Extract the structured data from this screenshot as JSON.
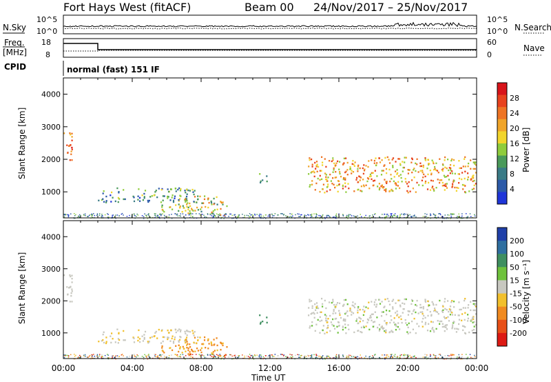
{
  "header": {
    "station": "Fort Hays West (fitACF)",
    "beam": "Beam 00",
    "dates": "24/Nov/2017 – 25/Nov/2017"
  },
  "side_labels": {
    "nsky": "N.Sky",
    "nsearch": "N.Search",
    "freq_line1": "Freq.",
    "freq_line2": "[MHz]",
    "nave": "Nave",
    "cpid": "CPID"
  },
  "mode_text": "normal (fast) 151 IF",
  "status_axes": {
    "noise_left_ticks": [
      "10^5",
      "10^0"
    ],
    "noise_right_ticks": [
      "10^5",
      "10^0"
    ],
    "freq_left_ticks": [
      "18",
      "8"
    ],
    "freq_right_ticks": [
      "60",
      "0"
    ]
  },
  "axes": {
    "xlabel": "Time UT",
    "x_ticks": [
      "00:00",
      "04:00",
      "08:00",
      "12:00",
      "16:00",
      "20:00",
      "00:00"
    ],
    "ylabel": "Slant Range [km]",
    "y_ticks": [
      "1000",
      "2000",
      "3000",
      "4000"
    ],
    "ylim": [
      200,
      4500
    ],
    "xlim_hours": [
      0,
      24
    ]
  },
  "colorbars": {
    "power": {
      "label": "Power [dB]",
      "ticks": [
        "4",
        "8",
        "12",
        "16",
        "20",
        "24",
        "28"
      ],
      "colors": [
        "#1f35d8",
        "#2c5aa8",
        "#3a7b86",
        "#4a9a5a",
        "#8fcc3c",
        "#f2d52c",
        "#f0a52a",
        "#ee7424",
        "#e8421e",
        "#d8141a"
      ]
    },
    "velocity": {
      "label": "Velocity [m s⁻¹]",
      "ticks": [
        "200",
        "100",
        "50",
        "15",
        "-15",
        "-50",
        "-100",
        "-200"
      ],
      "colors": [
        "#1f3fa8",
        "#2f6fa0",
        "#3f8f60",
        "#6fc23c",
        "#c8c8c0",
        "#f2c02c",
        "#f08a20",
        "#e85018",
        "#dd1a14"
      ]
    }
  },
  "chart_data": [
    {
      "type": "heatmap",
      "title": "",
      "ylabel": "Slant Range [km]",
      "xlabel": "Time UT",
      "xlim": [
        0,
        24
      ],
      "ylim": [
        200,
        4500
      ],
      "value_label": "Power [dB]",
      "features": [
        {
          "t0": 0.0,
          "t1": 0.5,
          "r0": 1950,
          "r1": 2900,
          "value": 24
        },
        {
          "t0": 2.0,
          "t1": 7.8,
          "r0": 700,
          "r1": 1150,
          "value": 10
        },
        {
          "t0": 5.5,
          "t1": 7.5,
          "r0": 400,
          "r1": 650,
          "value": 14
        },
        {
          "t0": 7.0,
          "t1": 9.5,
          "r0": 300,
          "r1": 900,
          "value": 16
        },
        {
          "t0": 11.3,
          "t1": 11.8,
          "r0": 1300,
          "r1": 1600,
          "value": 12
        },
        {
          "t0": 14.2,
          "t1": 24.0,
          "r0": 1000,
          "r1": 2100,
          "value": 20
        }
      ]
    },
    {
      "type": "heatmap",
      "title": "",
      "ylabel": "Slant Range [km]",
      "xlabel": "Time UT",
      "xlim": [
        0,
        24
      ],
      "ylim": [
        200,
        4500
      ],
      "value_label": "Velocity [m s⁻¹]",
      "features": [
        {
          "t0": 0.0,
          "t1": 0.5,
          "r0": 1950,
          "r1": 2900,
          "value": 0
        },
        {
          "t0": 2.0,
          "t1": 7.8,
          "r0": 700,
          "r1": 1150,
          "value": -15
        },
        {
          "t0": 5.5,
          "t1": 7.5,
          "r0": 400,
          "r1": 650,
          "value": -50
        },
        {
          "t0": 7.0,
          "t1": 9.5,
          "r0": 300,
          "r1": 900,
          "value": -60
        },
        {
          "t0": 11.3,
          "t1": 11.8,
          "r0": 1300,
          "r1": 1600,
          "value": 40
        },
        {
          "t0": 14.2,
          "t1": 24.0,
          "r0": 1000,
          "r1": 2100,
          "value": 0
        }
      ]
    }
  ]
}
